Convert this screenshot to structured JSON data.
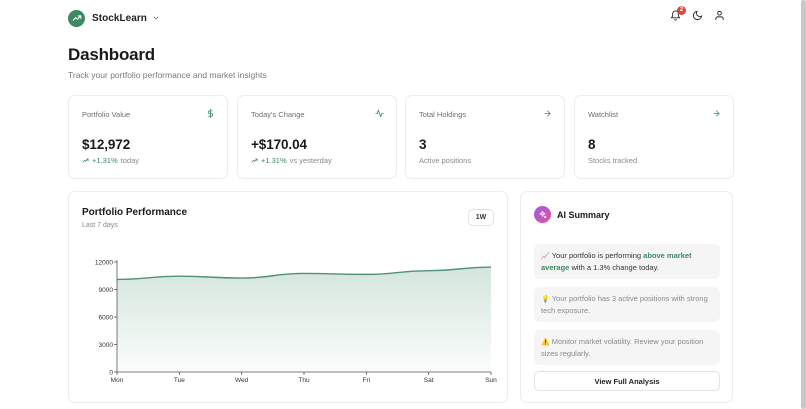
{
  "header": {
    "brand": "StockLearn",
    "notification_count": "2",
    "icons": [
      "trending-up-icon",
      "chevron-down-icon",
      "bell-icon",
      "moon-icon",
      "user-icon"
    ]
  },
  "page": {
    "title": "Dashboard",
    "subtitle": "Track your portfolio performance and market insights"
  },
  "stats": [
    {
      "label": "Portfolio Value",
      "value": "$12,972",
      "change": "+1.31%",
      "note": "today",
      "icon": "dollar-icon"
    },
    {
      "label": "Today's Change",
      "value": "+$170.04",
      "change": "+1.31%",
      "note": "vs yesterday",
      "icon": "activity-icon"
    },
    {
      "label": "Total Holdings",
      "value": "3",
      "note": "Active positions",
      "icon": "arrow-right-icon"
    },
    {
      "label": "Watchlist",
      "value": "8",
      "note": "Stocks tracked",
      "icon": "arrow-right-icon"
    }
  ],
  "performance": {
    "title": "Portfolio Performance",
    "subtitle": "Last 7 days",
    "range_label": "1W"
  },
  "chart_data": {
    "type": "area",
    "categories": [
      "Mon",
      "Tue",
      "Wed",
      "Thu",
      "Fri",
      "Sat",
      "Sun"
    ],
    "values": [
      10100,
      10450,
      10250,
      10750,
      10650,
      11050,
      11450
    ],
    "yticks": [
      0,
      3000,
      6000,
      9000,
      12000
    ],
    "ylim": [
      0,
      12000
    ],
    "grid": false,
    "title": "",
    "xlabel": "",
    "ylabel": "",
    "colors": {
      "line": "#4e9474",
      "fill": "#3b8a62"
    }
  },
  "ai_summary": {
    "title": "AI Summary",
    "insights": [
      {
        "emoji": "📈",
        "before": "Your portfolio is performing ",
        "highlight": "above market average",
        "after": " with a 1.3% change today."
      },
      {
        "emoji": "💡",
        "text": "Your portfolio has 3 active positions with strong tech exposure."
      },
      {
        "emoji": "⚠️",
        "text": "Monitor market volatility. Review your position sizes regularly."
      }
    ],
    "button_label": "View Full Analysis"
  },
  "colors": {
    "accent": "#3b8a62",
    "badge": "#e0463c",
    "ai_gradient_start": "#9b5de5",
    "ai_gradient_end": "#e54fa0"
  }
}
